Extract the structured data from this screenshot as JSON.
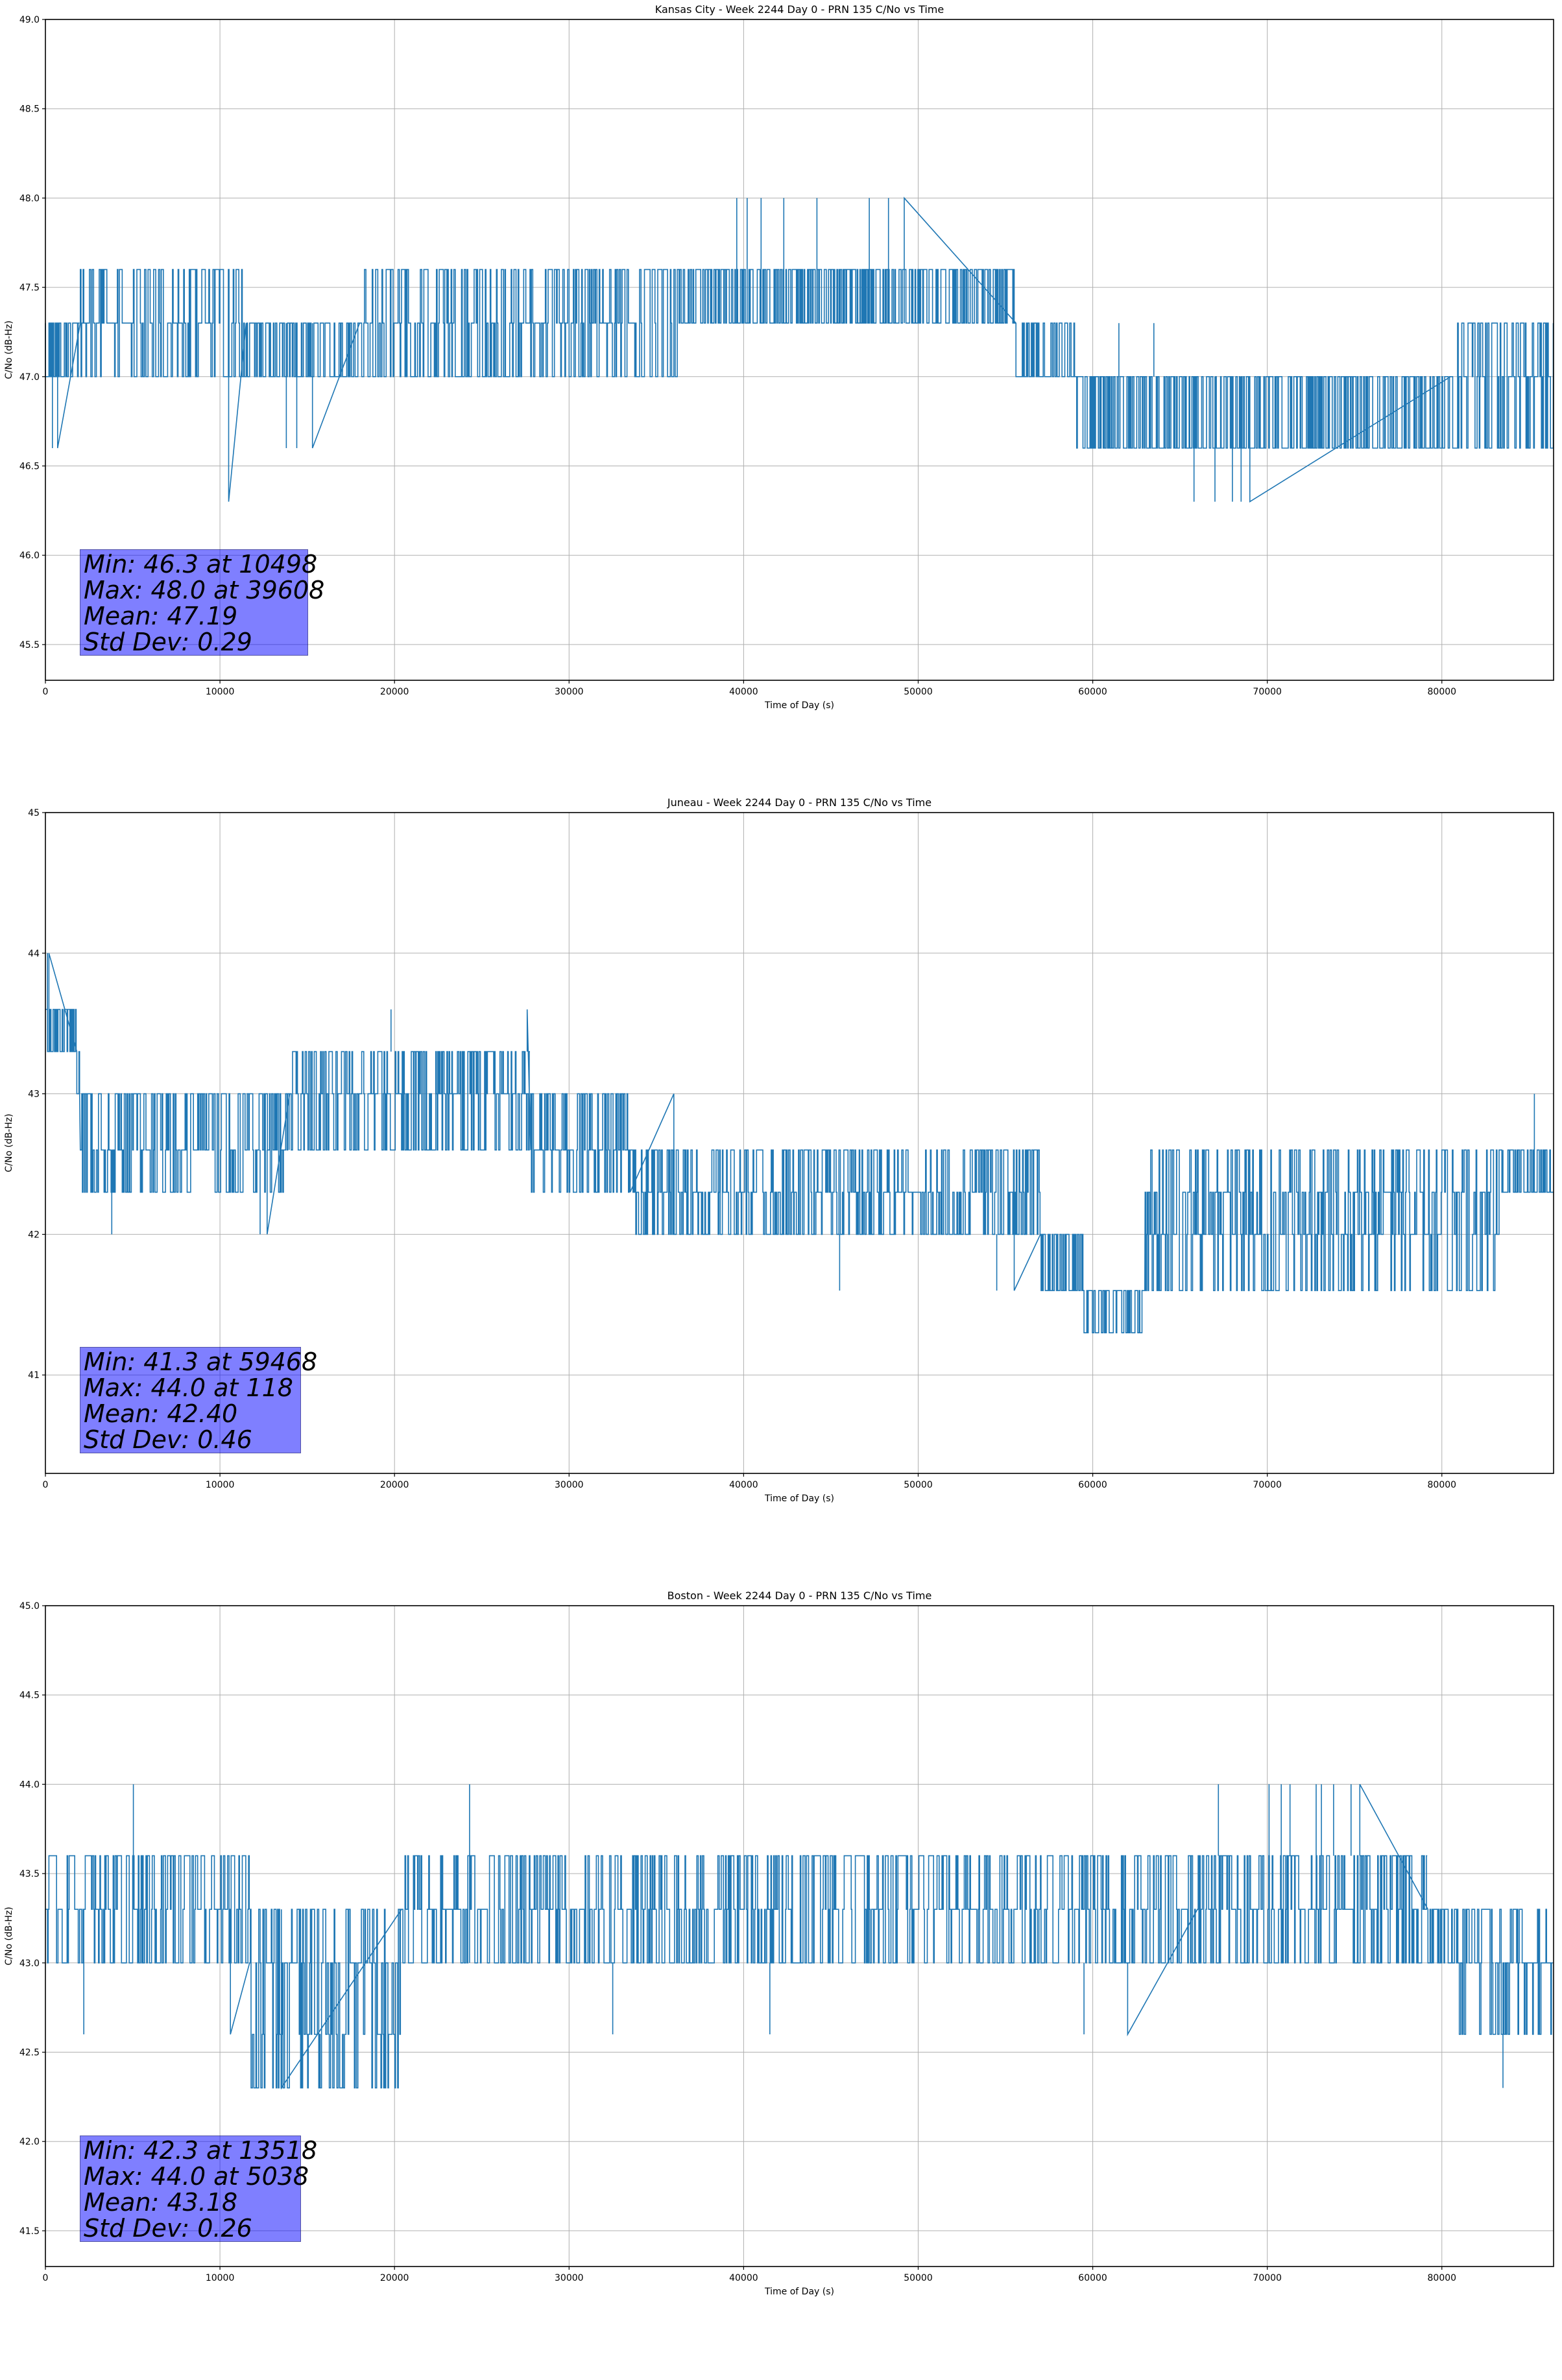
{
  "colors": {
    "line": "#1f77b4",
    "grid": "#b0b0b0",
    "axis": "#000000",
    "stats_box": "#8080ff"
  },
  "chart_data": [
    {
      "type": "line",
      "title": "Kansas City - Week 2244 Day 0 - PRN 135 C/No vs Time",
      "xlabel": "Time of Day (s)",
      "ylabel": "C/No (dB-Hz)",
      "xlim": [
        0,
        86400
      ],
      "ylim": [
        45.3,
        49.0
      ],
      "xticks": [
        "0",
        "10000",
        "20000",
        "30000",
        "40000",
        "50000",
        "60000",
        "70000",
        "80000"
      ],
      "xtick_values": [
        0,
        10000,
        20000,
        30000,
        40000,
        50000,
        60000,
        70000,
        80000
      ],
      "yticks": [
        "45.5",
        "46.0",
        "46.5",
        "47.0",
        "47.5",
        "48.0",
        "48.5",
        "49.0"
      ],
      "ytick_values": [
        45.5,
        46.0,
        46.5,
        47.0,
        47.5,
        48.0,
        48.5,
        49.0
      ],
      "grid": true,
      "stats": [
        "Min: 46.3 at 10498",
        "Max: 48.0 at 39608",
        "Mean: 47.19",
        "Std Dev: 0.29"
      ],
      "stats_placement": "bottom-left",
      "segments": [
        {
          "x": [
            0,
            2000
          ],
          "levels": [
            47.0,
            47.3
          ],
          "density": 0.9,
          "spikes": [
            [
              400,
              46.6
            ],
            [
              700,
              46.6
            ]
          ]
        },
        {
          "x": [
            2000,
            11500
          ],
          "levels": [
            47.0,
            47.3,
            47.6
          ],
          "density": 0.55,
          "spikes": [
            [
              10498,
              46.3
            ]
          ]
        },
        {
          "x": [
            11500,
            18000
          ],
          "levels": [
            47.0,
            47.3
          ],
          "density": 0.85,
          "spikes": [
            [
              13800,
              46.6
            ],
            [
              14400,
              46.6
            ],
            [
              15300,
              46.6
            ]
          ]
        },
        {
          "x": [
            18000,
            36300
          ],
          "levels": [
            47.0,
            47.3,
            47.6
          ],
          "density": 0.6,
          "spikes": []
        },
        {
          "x": [
            36300,
            55600
          ],
          "levels": [
            47.3,
            47.6
          ],
          "density": 0.92,
          "spikes": [
            [
              39608,
              48.0
            ],
            [
              40200,
              48.0
            ],
            [
              41000,
              48.0
            ],
            [
              42300,
              48.0
            ],
            [
              44200,
              48.0
            ],
            [
              47200,
              48.0
            ],
            [
              48300,
              48.0
            ],
            [
              49200,
              48.0
            ]
          ]
        },
        {
          "x": [
            55600,
            59000
          ],
          "levels": [
            47.0,
            47.3
          ],
          "density": 0.9,
          "spikes": []
        },
        {
          "x": [
            59000,
            80500
          ],
          "levels": [
            46.6,
            47.0
          ],
          "density": 0.92,
          "spikes": [
            [
              61500,
              47.3
            ],
            [
              63500,
              47.3
            ],
            [
              65800,
              46.3
            ],
            [
              67000,
              46.3
            ],
            [
              68000,
              46.3
            ],
            [
              68500,
              46.3
            ],
            [
              69000,
              46.3
            ]
          ]
        },
        {
          "x": [
            80500,
            86400
          ],
          "levels": [
            46.6,
            47.0,
            47.3
          ],
          "density": 0.6,
          "spikes": []
        }
      ]
    },
    {
      "type": "line",
      "title": "Juneau - Week 2244 Day 0 - PRN 135 C/No vs Time",
      "xlabel": "Time of Day (s)",
      "ylabel": "C/No (dB-Hz)",
      "xlim": [
        0,
        86400
      ],
      "ylim": [
        40.3,
        45.0
      ],
      "xticks": [
        "0",
        "10000",
        "20000",
        "30000",
        "40000",
        "50000",
        "60000",
        "70000",
        "80000"
      ],
      "xtick_values": [
        0,
        10000,
        20000,
        30000,
        40000,
        50000,
        60000,
        70000,
        80000
      ],
      "yticks": [
        "41",
        "42",
        "43",
        "44",
        "45"
      ],
      "ytick_values": [
        41,
        42,
        43,
        44,
        45
      ],
      "grid": true,
      "stats": [
        "Min: 41.3 at 59468",
        "Max: 44.0 at 118",
        "Mean: 42.40",
        "Std Dev: 0.46"
      ],
      "stats_placement": "bottom-left",
      "segments": [
        {
          "x": [
            0,
            1800
          ],
          "levels": [
            43.3,
            43.6
          ],
          "density": 0.9,
          "spikes": [
            [
              118,
              44.0
            ],
            [
              200,
              44.0
            ]
          ]
        },
        {
          "x": [
            1800,
            2000
          ],
          "levels": [
            43.0,
            43.3
          ],
          "density": 0.9,
          "spikes": []
        },
        {
          "x": [
            2000,
            14000
          ],
          "levels": [
            42.3,
            42.6,
            43.0
          ],
          "density": 0.75,
          "spikes": [
            [
              3800,
              42.0
            ],
            [
              12300,
              42.0
            ],
            [
              12700,
              42.0
            ]
          ]
        },
        {
          "x": [
            14000,
            27800
          ],
          "levels": [
            42.6,
            43.0,
            43.3
          ],
          "density": 0.75,
          "spikes": [
            [
              19800,
              43.6
            ],
            [
              27600,
              43.6
            ]
          ]
        },
        {
          "x": [
            27800,
            33500
          ],
          "levels": [
            42.3,
            42.6,
            43.0
          ],
          "density": 0.8,
          "spikes": [
            [
              36000,
              43.0
            ]
          ]
        },
        {
          "x": [
            33500,
            57000
          ],
          "levels": [
            42.0,
            42.3,
            42.6
          ],
          "density": 0.75,
          "spikes": [
            [
              45500,
              41.6
            ],
            [
              54500,
              41.6
            ],
            [
              55500,
              41.6
            ]
          ]
        },
        {
          "x": [
            57000,
            59500
          ],
          "levels": [
            41.6,
            42.0
          ],
          "density": 0.9,
          "spikes": []
        },
        {
          "x": [
            59500,
            63000
          ],
          "levels": [
            41.3,
            41.6
          ],
          "density": 0.9,
          "spikes": []
        },
        {
          "x": [
            63000,
            83500
          ],
          "levels": [
            41.6,
            42.0,
            42.3,
            42.6
          ],
          "density": 0.7,
          "spikes": []
        },
        {
          "x": [
            83500,
            86400
          ],
          "levels": [
            42.3,
            42.6
          ],
          "density": 0.9,
          "spikes": [
            [
              85300,
              43.0
            ]
          ]
        }
      ]
    },
    {
      "type": "line",
      "title": "Boston - Week 2244 Day 0 - PRN 135 C/No vs Time",
      "xlabel": "Time of Day (s)",
      "ylabel": "C/No (dB-Hz)",
      "xlim": [
        0,
        86400
      ],
      "ylim": [
        41.3,
        45.0
      ],
      "xticks": [
        "0",
        "10000",
        "20000",
        "30000",
        "40000",
        "50000",
        "60000",
        "70000",
        "80000"
      ],
      "xtick_values": [
        0,
        10000,
        20000,
        30000,
        40000,
        50000,
        60000,
        70000,
        80000
      ],
      "yticks": [
        "41.5",
        "42.0",
        "42.5",
        "43.0",
        "43.5",
        "44.0",
        "44.5",
        "45.0"
      ],
      "ytick_values": [
        41.5,
        42.0,
        42.5,
        43.0,
        43.5,
        44.0,
        44.5,
        45.0
      ],
      "grid": true,
      "stats": [
        "Min: 42.3 at 13518",
        "Max: 44.0 at 5038",
        "Mean: 43.18",
        "Std Dev: 0.26"
      ],
      "stats_placement": "bottom-left",
      "segments": [
        {
          "x": [
            0,
            11700
          ],
          "levels": [
            43.0,
            43.3,
            43.6
          ],
          "density": 0.65,
          "spikes": [
            [
              2200,
              42.6
            ],
            [
              5038,
              44.0
            ],
            [
              10600,
              42.6
            ]
          ]
        },
        {
          "x": [
            11700,
            20400
          ],
          "levels": [
            42.3,
            42.6,
            43.0,
            43.3
          ],
          "density": 0.75,
          "spikes": [
            [
              13518,
              42.3
            ]
          ]
        },
        {
          "x": [
            20400,
            66000
          ],
          "levels": [
            43.0,
            43.3,
            43.6
          ],
          "density": 0.6,
          "spikes": [
            [
              24300,
              44.0
            ],
            [
              32500,
              42.6
            ],
            [
              41500,
              42.6
            ],
            [
              59500,
              42.6
            ],
            [
              62000,
              42.6
            ]
          ]
        },
        {
          "x": [
            66000,
            79200
          ],
          "levels": [
            43.0,
            43.3,
            43.6
          ],
          "density": 0.7,
          "spikes": [
            [
              67200,
              44.0
            ],
            [
              70100,
              44.0
            ],
            [
              70800,
              44.0
            ],
            [
              71300,
              44.0
            ],
            [
              72800,
              44.0
            ],
            [
              73100,
              44.0
            ],
            [
              73800,
              44.0
            ],
            [
              74800,
              44.0
            ],
            [
              75300,
              44.0
            ]
          ]
        },
        {
          "x": [
            79200,
            81000
          ],
          "levels": [
            43.0,
            43.3
          ],
          "density": 0.9,
          "spikes": []
        },
        {
          "x": [
            81000,
            86400
          ],
          "levels": [
            42.6,
            43.0,
            43.3
          ],
          "density": 0.75,
          "spikes": [
            [
              83500,
              42.3
            ]
          ]
        }
      ]
    }
  ]
}
